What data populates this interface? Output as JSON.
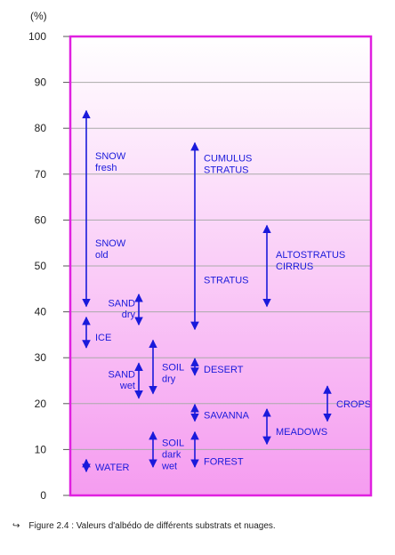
{
  "chart_data": {
    "type": "range",
    "ylabel": "(%)",
    "ylim": [
      0,
      100
    ],
    "yticks": [
      0,
      10,
      20,
      30,
      40,
      50,
      60,
      70,
      80,
      90,
      100
    ],
    "grid": true,
    "colors": {
      "frame": "#e020e0",
      "grid": "#aaaaaa",
      "arrows": "#1a1adb",
      "fill_top": "#ffffff",
      "fill_bottom": "#f59cf0"
    },
    "items": [
      {
        "id": "snow",
        "col": 0,
        "low": 41,
        "high": 84,
        "labels": [
          {
            "text": "SNOW",
            "at": 74,
            "side": "right"
          },
          {
            "text": "fresh",
            "at": 71.5,
            "side": "right"
          },
          {
            "text": "SNOW",
            "at": 55,
            "side": "right"
          },
          {
            "text": "old",
            "at": 52.5,
            "side": "right"
          }
        ]
      },
      {
        "id": "ice",
        "col": 0,
        "low": 32,
        "high": 39,
        "labels": [
          {
            "text": "ICE",
            "at": 34.5,
            "side": "right"
          }
        ]
      },
      {
        "id": "water",
        "col": 0,
        "low": 5,
        "high": 8,
        "labels": [
          {
            "text": "WATER",
            "at": 6.2,
            "side": "right"
          }
        ]
      },
      {
        "id": "sand-dry",
        "col": 1,
        "low": 37,
        "high": 44,
        "labels": [
          {
            "text": "SAND",
            "at": 42,
            "side": "left"
          },
          {
            "text": "dry",
            "at": 39.5,
            "side": "left"
          }
        ]
      },
      {
        "id": "sand-wet",
        "col": 1,
        "low": 21,
        "high": 29,
        "labels": [
          {
            "text": "SAND",
            "at": 26.5,
            "side": "left"
          },
          {
            "text": "wet",
            "at": 24,
            "side": "left"
          }
        ]
      },
      {
        "id": "soil-dry",
        "col": 2,
        "low": 22,
        "high": 34,
        "labels": [
          {
            "text": "SOIL",
            "at": 28,
            "side": "right"
          },
          {
            "text": "dry",
            "at": 25.5,
            "side": "right"
          }
        ]
      },
      {
        "id": "soil-dark-wet",
        "col": 2,
        "low": 6,
        "high": 14,
        "labels": [
          {
            "text": "SOIL",
            "at": 11.5,
            "side": "right"
          },
          {
            "text": "dark",
            "at": 9,
            "side": "right"
          },
          {
            "text": "wet",
            "at": 6.5,
            "side": "right"
          }
        ]
      },
      {
        "id": "cumulus-stratus",
        "col": 3,
        "low": 36,
        "high": 77,
        "labels": [
          {
            "text": "CUMULUS",
            "at": 73.5,
            "side": "right"
          },
          {
            "text": "STRATUS",
            "at": 71,
            "side": "right"
          },
          {
            "text": "STRATUS",
            "at": 47,
            "side": "right"
          }
        ]
      },
      {
        "id": "desert",
        "col": 3,
        "low": 26,
        "high": 30,
        "labels": [
          {
            "text": "DESERT",
            "at": 27.5,
            "side": "right"
          }
        ]
      },
      {
        "id": "savanna",
        "col": 3,
        "low": 16,
        "high": 20,
        "labels": [
          {
            "text": "SAVANNA",
            "at": 17.5,
            "side": "right"
          }
        ]
      },
      {
        "id": "forest",
        "col": 3,
        "low": 6,
        "high": 14,
        "labels": [
          {
            "text": "FOREST",
            "at": 7.5,
            "side": "right"
          }
        ]
      },
      {
        "id": "altostratus-cirrus",
        "col": 4,
        "low": 41,
        "high": 59,
        "labels": [
          {
            "text": "ALTOSTRATUS",
            "at": 52.5,
            "side": "right"
          },
          {
            "text": "CIRRUS",
            "at": 50,
            "side": "right"
          }
        ]
      },
      {
        "id": "meadows",
        "col": 4,
        "low": 11,
        "high": 19,
        "labels": [
          {
            "text": "MEADOWS",
            "at": 14,
            "side": "right"
          }
        ]
      },
      {
        "id": "crops",
        "col": 5,
        "low": 16,
        "high": 24,
        "labels": [
          {
            "text": "CROPS",
            "at": 20,
            "side": "right"
          }
        ]
      }
    ]
  },
  "caption": {
    "marker": "↪",
    "text": "Figure 2.4 : Valeurs d'albédo de différents substrats et nuages."
  }
}
